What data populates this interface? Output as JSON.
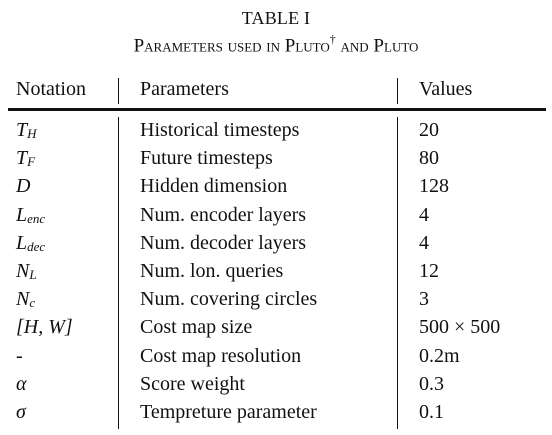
{
  "caption": {
    "label": "TABLE I",
    "title_main": "Parameters used in Pluto",
    "title_mark": "†",
    "title_tail": " and Pluto"
  },
  "table": {
    "headers": {
      "notation": "Notation",
      "parameters": "Parameters",
      "values": "Values"
    },
    "rows": [
      {
        "notation_main": "T",
        "notation_sub": "H",
        "parameter": "Historical timesteps",
        "value": "20"
      },
      {
        "notation_main": "T",
        "notation_sub": "F",
        "parameter": "Future timesteps",
        "value": "80"
      },
      {
        "notation_main": "D",
        "notation_sub": "",
        "parameter": "Hidden dimension",
        "value": "128"
      },
      {
        "notation_main": "L",
        "notation_sub": "enc",
        "parameter": "Num. encoder layers",
        "value": "4"
      },
      {
        "notation_main": "L",
        "notation_sub": "dec",
        "parameter": "Num. decoder layers",
        "value": "4"
      },
      {
        "notation_main": "N",
        "notation_sub": "L",
        "parameter": "Num. lon. queries",
        "value": "12"
      },
      {
        "notation_main": "N",
        "notation_sub": "c",
        "parameter": "Num. covering circles",
        "value": "3"
      },
      {
        "notation_main": "[H, W]",
        "notation_sub": "",
        "parameter": "Cost map size",
        "value": "500 × 500"
      },
      {
        "notation_main": "-",
        "notation_sub": "",
        "parameter": "Cost map resolution",
        "value": "0.2m"
      },
      {
        "notation_main": "α",
        "notation_sub": "",
        "parameter": "Score weight",
        "value": "0.3"
      },
      {
        "notation_main": "σ",
        "notation_sub": "",
        "parameter": "Tempreture parameter",
        "value": "0.1"
      }
    ]
  }
}
